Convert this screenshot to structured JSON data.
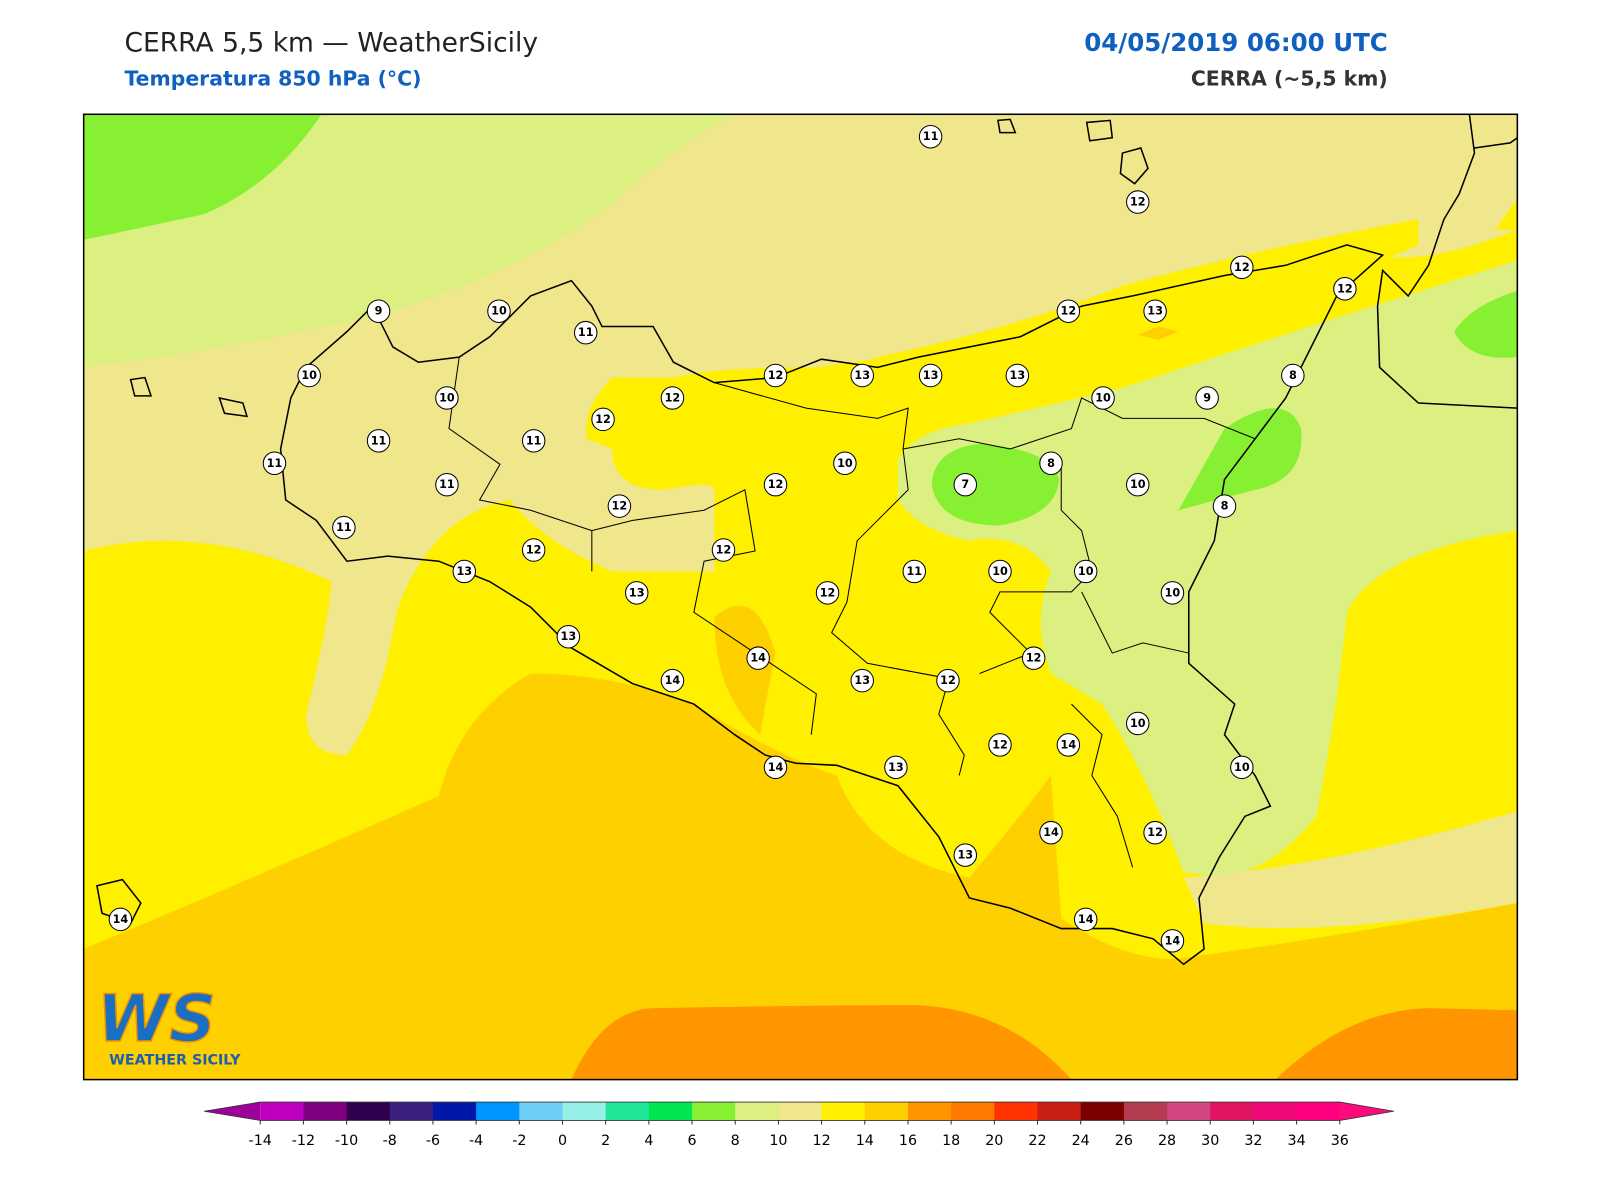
{
  "header": {
    "title": "CERRA 5,5 km — WeatherSicily",
    "subtitle": "Temperatura 850 hPa (°C)",
    "date": "04/05/2019 06:00 UTC",
    "model": "CERRA (~5,5 km)"
  },
  "map": {
    "stations": [
      11,
      12,
      12,
      12,
      9,
      10,
      11,
      12,
      13,
      10,
      12,
      13,
      13,
      13,
      8,
      10,
      12,
      10,
      9,
      12,
      11,
      11,
      11,
      10,
      8,
      11,
      12,
      7,
      10,
      12,
      8,
      11,
      12,
      12,
      13,
      11,
      10,
      10,
      13,
      12,
      10,
      13,
      12,
      14,
      14,
      13,
      12,
      10,
      12,
      14,
      14,
      13,
      10,
      14,
      12,
      13,
      14,
      14,
      14
    ]
  },
  "logo": {
    "mark": "WS",
    "text": "WEATHER SICILY"
  },
  "colorbar": {
    "ticks": [
      -14,
      -12,
      -10,
      -8,
      -6,
      -4,
      -2,
      0,
      2,
      4,
      6,
      8,
      10,
      12,
      14,
      16,
      18,
      20,
      22,
      24,
      26,
      28,
      30,
      32,
      34,
      36
    ],
    "colors": [
      "#c000c0",
      "#800080",
      "#300050",
      "#3c2080",
      "#0018a8",
      "#0096ff",
      "#6ecff6",
      "#96f0e6",
      "#1ee696",
      "#00e650",
      "#88f032",
      "#dcf082",
      "#f0e68c",
      "#fff000",
      "#ffd000",
      "#ff9600",
      "#ff7800",
      "#ff3200",
      "#c81e14",
      "#7d0000",
      "#b43c50",
      "#d24682",
      "#e11464",
      "#f00a78",
      "#ff0080"
    ],
    "under": "#a0009a",
    "over": "#ff0a7a"
  }
}
